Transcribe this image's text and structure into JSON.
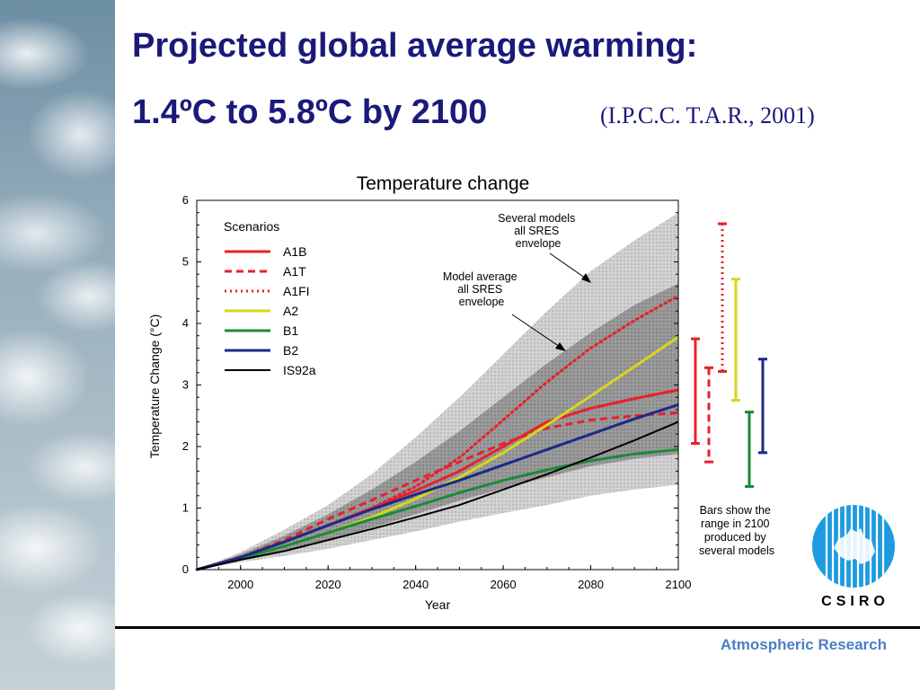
{
  "slide": {
    "title_line1": "Projected global average warming:",
    "title_line2": "1.4ºC to 5.8ºC  by 2100",
    "citation": "(I.P.C.C. T.A.R., 2001)",
    "footer": "Atmospheric Research",
    "logo_text": "CSIRO"
  },
  "chart_data": {
    "type": "line",
    "title": "Temperature change",
    "xlabel": "Year",
    "ylabel": "Temperature Change (°C)",
    "xlim": [
      1990,
      2100
    ],
    "ylim": [
      0,
      6
    ],
    "x_ticks": [
      2000,
      2020,
      2040,
      2060,
      2080,
      2100
    ],
    "y_ticks": [
      0,
      1,
      2,
      3,
      4,
      5,
      6
    ],
    "legend_title": "Scenarios",
    "legend_position": "top-left",
    "x": [
      1990,
      2000,
      2010,
      2020,
      2030,
      2040,
      2050,
      2060,
      2070,
      2080,
      2090,
      2100
    ],
    "series": [
      {
        "name": "A1B",
        "color": "#e8202a",
        "dash": "solid",
        "values": [
          0,
          0.2,
          0.45,
          0.72,
          1.0,
          1.28,
          1.6,
          2.0,
          2.4,
          2.62,
          2.78,
          2.92
        ]
      },
      {
        "name": "A1T",
        "color": "#e8202a",
        "dash": "dashed",
        "values": [
          0,
          0.2,
          0.48,
          0.82,
          1.13,
          1.45,
          1.75,
          2.05,
          2.3,
          2.43,
          2.5,
          2.55
        ]
      },
      {
        "name": "A1FI",
        "color": "#e8202a",
        "dash": "dotted",
        "values": [
          0,
          0.2,
          0.45,
          0.72,
          1.0,
          1.35,
          1.82,
          2.43,
          3.05,
          3.6,
          4.05,
          4.45
        ]
      },
      {
        "name": "A2",
        "color": "#d6d61e",
        "dash": "solid",
        "values": [
          0,
          0.18,
          0.38,
          0.6,
          0.85,
          1.15,
          1.5,
          1.9,
          2.35,
          2.82,
          3.3,
          3.78
        ]
      },
      {
        "name": "B1",
        "color": "#1a8a3a",
        "dash": "solid",
        "values": [
          0,
          0.18,
          0.38,
          0.6,
          0.82,
          1.03,
          1.25,
          1.45,
          1.62,
          1.77,
          1.88,
          1.95
        ]
      },
      {
        "name": "B2",
        "color": "#1a2a8a",
        "dash": "solid",
        "values": [
          0,
          0.2,
          0.45,
          0.72,
          0.98,
          1.22,
          1.45,
          1.7,
          1.95,
          2.2,
          2.45,
          2.68
        ]
      },
      {
        "name": "IS92a",
        "color": "#000000",
        "dash": "solid",
        "values": [
          0,
          0.16,
          0.3,
          0.48,
          0.66,
          0.85,
          1.05,
          1.3,
          1.55,
          1.82,
          2.1,
          2.4
        ]
      }
    ],
    "envelope_outer": {
      "x": [
        1990,
        2000,
        2010,
        2020,
        2030,
        2040,
        2050,
        2060,
        2070,
        2080,
        2090,
        2100
      ],
      "lower": [
        0,
        0.12,
        0.22,
        0.34,
        0.48,
        0.62,
        0.78,
        0.92,
        1.05,
        1.2,
        1.3,
        1.38
      ],
      "upper": [
        0,
        0.28,
        0.65,
        1.05,
        1.55,
        2.15,
        2.8,
        3.5,
        4.2,
        4.85,
        5.35,
        5.8
      ]
    },
    "envelope_inner": {
      "x": [
        1990,
        2000,
        2010,
        2020,
        2030,
        2040,
        2050,
        2060,
        2070,
        2080,
        2090,
        2100
      ],
      "lower": [
        0,
        0.15,
        0.3,
        0.48,
        0.68,
        0.9,
        1.12,
        1.32,
        1.5,
        1.68,
        1.8,
        1.88
      ],
      "upper": [
        0,
        0.25,
        0.55,
        0.9,
        1.3,
        1.75,
        2.25,
        2.8,
        3.35,
        3.85,
        4.3,
        4.65
      ]
    },
    "annotations": [
      {
        "text": [
          "Several models",
          "all SRES",
          "envelope"
        ]
      },
      {
        "text": [
          "Model average",
          "all SRES",
          "envelope"
        ]
      },
      {
        "text": [
          "Bars show the",
          "range in 2100",
          "produced by",
          "several models"
        ]
      }
    ],
    "range_bars_2100": [
      {
        "name": "A1B",
        "color": "#e8202a",
        "dash": "solid",
        "low": 2.05,
        "high": 3.75
      },
      {
        "name": "A1T",
        "color": "#e8202a",
        "dash": "dashed",
        "low": 1.75,
        "high": 3.28
      },
      {
        "name": "A1FI",
        "color": "#e8202a",
        "dash": "dotted",
        "low": 3.22,
        "high": 5.62
      },
      {
        "name": "A2",
        "color": "#d6d61e",
        "dash": "solid",
        "low": 2.75,
        "high": 4.72
      },
      {
        "name": "B1",
        "color": "#1a8a3a",
        "dash": "solid",
        "low": 1.35,
        "high": 2.56
      },
      {
        "name": "B2",
        "color": "#1a2a8a",
        "dash": "solid",
        "low": 1.9,
        "high": 3.42
      }
    ]
  }
}
